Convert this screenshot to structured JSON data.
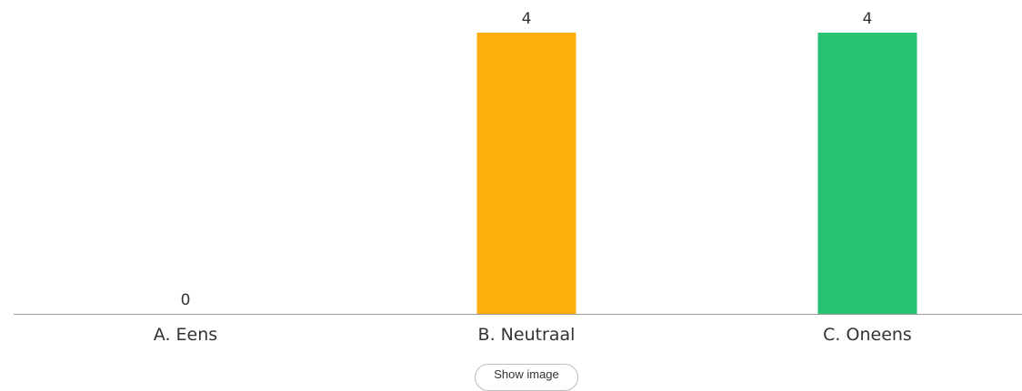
{
  "chart_data": {
    "type": "bar",
    "categories": [
      "A. Eens",
      "B. Neutraal",
      "C. Oneens"
    ],
    "values": [
      0,
      4,
      4
    ],
    "colors": [
      "#c8c8c8",
      "#fdae0d",
      "#28c372"
    ],
    "ylim": [
      0,
      4
    ],
    "grid": false,
    "data_labels": [
      "0",
      "4",
      "4"
    ]
  },
  "show_image_label": "Show image"
}
